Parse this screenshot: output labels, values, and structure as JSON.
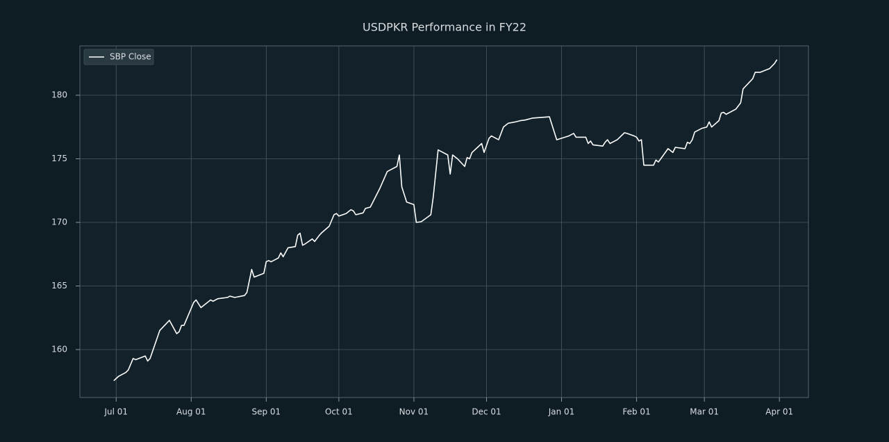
{
  "chart_data": {
    "type": "line",
    "title": "USDPKR Performance in FY22",
    "x": [
      "Jun 30",
      "Jul 02",
      "Jul 05",
      "Jul 06",
      "Jul 08",
      "Jul 09",
      "Jul 13",
      "Jul 14",
      "Jul 15",
      "Jul 19",
      "Jul 23",
      "Jul 26",
      "Jul 27",
      "Jul 28",
      "Jul 29",
      "Aug 02",
      "Aug 03",
      "Aug 05",
      "Aug 09",
      "Aug 10",
      "Aug 12",
      "Aug 16",
      "Aug 17",
      "Aug 19",
      "Aug 23",
      "Aug 24",
      "Aug 26",
      "Aug 27",
      "Aug 31",
      "Sep 01",
      "Sep 02",
      "Sep 03",
      "Sep 06",
      "Sep 07",
      "Sep 08",
      "Sep 10",
      "Sep 13",
      "Sep 14",
      "Sep 15",
      "Sep 16",
      "Sep 17",
      "Sep 20",
      "Sep 21",
      "Sep 23",
      "Sep 24",
      "Sep 27",
      "Sep 29",
      "Sep 30",
      "Oct 01",
      "Oct 04",
      "Oct 05",
      "Oct 06",
      "Oct 07",
      "Oct 08",
      "Oct 11",
      "Oct 12",
      "Oct 14",
      "Oct 18",
      "Oct 21",
      "Oct 25",
      "Oct 26",
      "Oct 27",
      "Oct 29",
      "Nov 01",
      "Nov 02",
      "Nov 04",
      "Nov 08",
      "Nov 09",
      "Nov 11",
      "Nov 15",
      "Nov 16",
      "Nov 17",
      "Nov 19",
      "Nov 22",
      "Nov 23",
      "Nov 24",
      "Nov 25",
      "Nov 29",
      "Nov 30",
      "Dec 02",
      "Dec 03",
      "Dec 06",
      "Dec 08",
      "Dec 10",
      "Dec 13",
      "Dec 15",
      "Dec 17",
      "Dec 20",
      "Dec 27",
      "Dec 30",
      "Jan 04",
      "Jan 06",
      "Jan 07",
      "Jan 11",
      "Jan 12",
      "Jan 13",
      "Jan 14",
      "Jan 18",
      "Jan 19",
      "Jan 20",
      "Jan 21",
      "Jan 24",
      "Jan 27",
      "Jan 28",
      "Jan 31",
      "Feb 01",
      "Feb 02",
      "Feb 03",
      "Feb 04",
      "Feb 08",
      "Feb 09",
      "Feb 10",
      "Feb 11",
      "Feb 14",
      "Feb 16",
      "Feb 17",
      "Feb 21",
      "Feb 22",
      "Feb 23",
      "Feb 24",
      "Feb 25",
      "Feb 28",
      "Mar 02",
      "Mar 03",
      "Mar 04",
      "Mar 07",
      "Mar 08",
      "Mar 09",
      "Mar 10",
      "Mar 14",
      "Mar 16",
      "Mar 17",
      "Mar 21",
      "Mar 22",
      "Mar 24",
      "Mar 28",
      "Mar 30",
      "Mar 31"
    ],
    "series": [
      {
        "name": "SBP Close",
        "color": "#ffffff",
        "values": [
          157.55,
          157.9,
          158.2,
          158.4,
          159.3,
          159.2,
          159.5,
          159.1,
          159.3,
          161.5,
          162.3,
          161.25,
          161.4,
          161.9,
          161.9,
          163.7,
          163.9,
          163.3,
          163.9,
          163.8,
          164.0,
          164.1,
          164.2,
          164.1,
          164.25,
          164.5,
          166.3,
          165.7,
          166.0,
          166.9,
          167.0,
          166.9,
          167.2,
          167.6,
          167.3,
          168.0,
          168.1,
          169.0,
          169.15,
          168.2,
          168.3,
          168.7,
          168.5,
          169.0,
          169.2,
          169.7,
          170.6,
          170.7,
          170.5,
          170.7,
          170.85,
          171.0,
          170.9,
          170.6,
          170.75,
          171.1,
          171.2,
          172.7,
          174.0,
          174.4,
          175.3,
          172.8,
          171.6,
          171.4,
          170.0,
          170.05,
          170.6,
          172.0,
          175.7,
          175.3,
          173.8,
          175.3,
          175.0,
          174.4,
          175.1,
          175.0,
          175.5,
          176.2,
          175.5,
          176.6,
          176.8,
          176.5,
          177.5,
          177.8,
          177.9,
          178.0,
          178.05,
          178.2,
          178.3,
          176.5,
          176.8,
          177.0,
          176.7,
          176.7,
          176.2,
          176.4,
          176.1,
          176.0,
          176.3,
          176.5,
          176.2,
          176.5,
          177.05,
          177.0,
          176.8,
          176.7,
          176.4,
          176.5,
          174.5,
          174.5,
          174.9,
          174.75,
          175.0,
          175.8,
          175.5,
          175.9,
          175.8,
          176.3,
          176.2,
          176.5,
          177.1,
          177.4,
          177.5,
          177.9,
          177.5,
          178.0,
          178.6,
          178.65,
          178.5,
          178.9,
          179.4,
          180.5,
          181.3,
          181.8,
          181.8,
          182.1,
          182.5,
          182.8
        ]
      }
    ],
    "xlim": [
      "Jun 16",
      "Apr 13"
    ],
    "xticks": [
      "Jul 01",
      "Aug 01",
      "Sep 01",
      "Oct 01",
      "Nov 01",
      "Dec 01",
      "Jan 01",
      "Feb 01",
      "Mar 01",
      "Apr 01"
    ],
    "ylim": [
      156.23,
      183.88
    ],
    "yticks": [
      160,
      165,
      170,
      175,
      180
    ],
    "grid": true,
    "legend": "upper left"
  }
}
